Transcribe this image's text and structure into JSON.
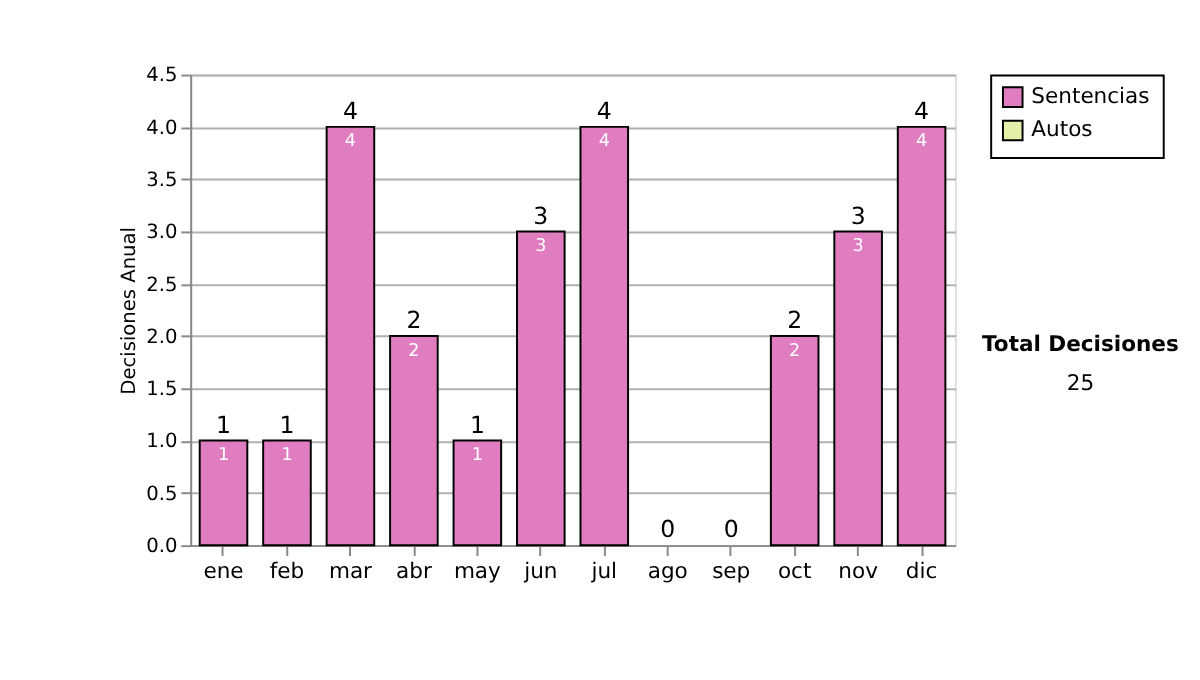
{
  "chart_data": {
    "type": "bar",
    "ylabel": "Decisiones Anual",
    "categories": [
      "ene",
      "feb",
      "mar",
      "abr",
      "may",
      "jun",
      "jul",
      "ago",
      "sep",
      "oct",
      "nov",
      "dic"
    ],
    "stacked": true,
    "series": [
      {
        "name": "Sentencias",
        "color": "#e07cc0",
        "values": [
          1,
          1,
          4,
          2,
          1,
          3,
          4,
          0,
          0,
          2,
          3,
          4
        ],
        "value_labels": [
          "1",
          "1",
          "4",
          "2",
          "1",
          "3",
          "4",
          null,
          null,
          "2",
          "3",
          "4"
        ]
      },
      {
        "name": "Autos",
        "color": "#e4f0a8",
        "values": [
          0,
          0,
          0,
          0,
          0,
          0,
          0,
          0,
          0,
          0,
          0,
          0
        ]
      }
    ],
    "totals": [
      "1",
      "1",
      "4",
      "2",
      "1",
      "3",
      "4",
      "0",
      "0",
      "2",
      "3",
      "4"
    ],
    "ylim": [
      0,
      4.5
    ],
    "yticks": [
      {
        "value": 0,
        "label": "0.0"
      },
      {
        "value": 0.5,
        "label": "0.5"
      },
      {
        "value": 1,
        "label": "1.0"
      },
      {
        "value": 1.5,
        "label": "1.5"
      },
      {
        "value": 2,
        "label": "2.0"
      },
      {
        "value": 2.5,
        "label": "2.5"
      },
      {
        "value": 3,
        "label": "3.0"
      },
      {
        "value": 3.5,
        "label": "3.5"
      },
      {
        "value": 4,
        "label": "4.0"
      },
      {
        "value": 4.5,
        "label": "4.5"
      }
    ],
    "grid": "y",
    "legend": "right",
    "annotations": [
      "Total Decisiones",
      "25"
    ]
  }
}
